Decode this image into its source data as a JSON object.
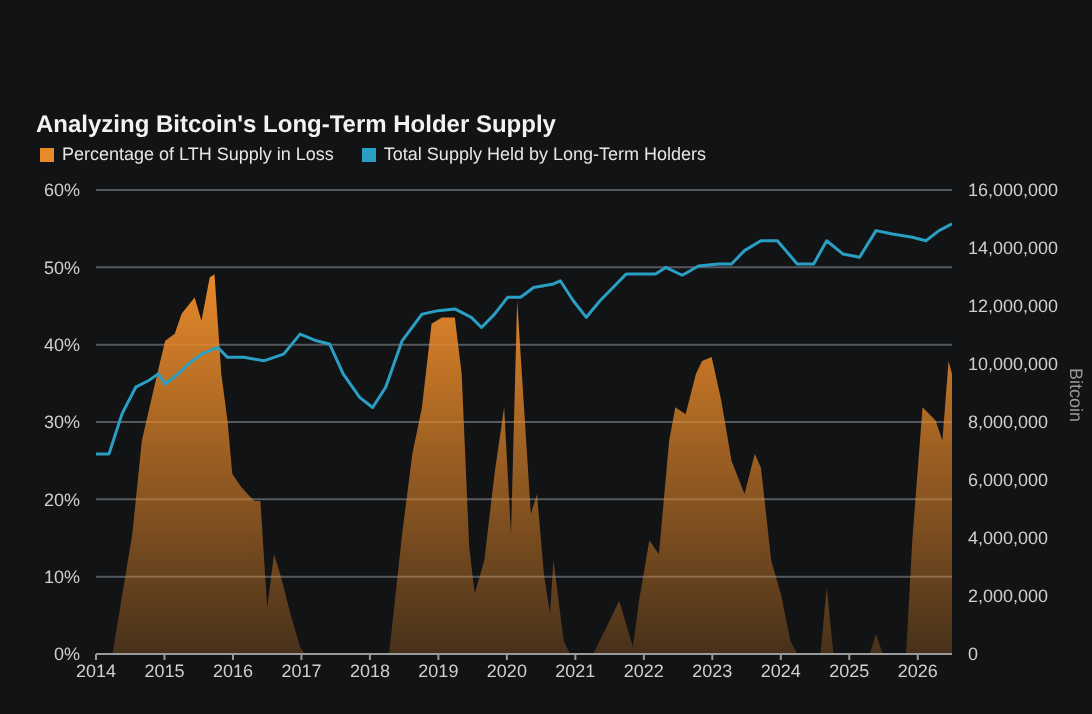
{
  "chart_data": {
    "type": "area",
    "title": "Analyzing Bitcoin's Long-Term Holder Supply",
    "y2label": "Bitcoin",
    "legend": "top left",
    "grid": "y",
    "xlim": [
      2014,
      2026.5
    ],
    "xticks": [
      2014,
      2015,
      2016,
      2017,
      2018,
      2019,
      2020,
      2021,
      2022,
      2023,
      2024,
      2025,
      2026
    ],
    "ylim": [
      0,
      60
    ],
    "yticks": [
      {
        "value": 0,
        "label": "0%"
      },
      {
        "value": 10,
        "label": "10%"
      },
      {
        "value": 20,
        "label": "20%"
      },
      {
        "value": 30,
        "label": "30%"
      },
      {
        "value": 40,
        "label": "40%"
      },
      {
        "value": 50,
        "label": "50%"
      },
      {
        "value": 60,
        "label": "60%"
      }
    ],
    "y2lim": [
      0,
      16000000
    ],
    "y2ticks": [
      {
        "value": 0,
        "label": "0"
      },
      {
        "value": 2000000,
        "label": "2,000,000"
      },
      {
        "value": 4000000,
        "label": "4,000,000"
      },
      {
        "value": 6000000,
        "label": "6,000,000"
      },
      {
        "value": 8000000,
        "label": "8,000,000"
      },
      {
        "value": 10000000,
        "label": "10,000,000"
      },
      {
        "value": 12000000,
        "label": "12,000,000"
      },
      {
        "value": 14000000,
        "label": "14,000,000"
      },
      {
        "value": 16000000,
        "label": "16,000,000"
      }
    ],
    "series": [
      {
        "name": "Percentage of LTH Supply in Loss",
        "color": "#e8892a",
        "x": [
          2014.24,
          2014.53,
          2014.67,
          2014.87,
          2015.01,
          2015.15,
          2015.25,
          2015.44,
          2015.54,
          2015.66,
          2015.73,
          2015.83,
          2015.92,
          2015.99,
          2016.12,
          2016.31,
          2016.4,
          2016.5,
          2016.6,
          2016.69,
          2016.84,
          2016.98,
          2017.05,
          2018.28,
          2018.47,
          2018.62,
          2018.76,
          2018.9,
          2019.05,
          2019.24,
          2019.34,
          2019.45,
          2019.53,
          2019.67,
          2019.82,
          2019.96,
          2020.06,
          2020.15,
          2020.25,
          2020.35,
          2020.44,
          2020.54,
          2020.63,
          2020.68,
          2020.83,
          2020.92,
          2021.26,
          2021.45,
          2021.64,
          2021.84,
          2021.93,
          2022.08,
          2022.22,
          2022.37,
          2022.46,
          2022.61,
          2022.76,
          2022.85,
          2022.99,
          2023.13,
          2023.28,
          2023.47,
          2023.62,
          2023.71,
          2023.86,
          2024.0,
          2024.14,
          2024.24,
          2024.58,
          2024.67,
          2024.77,
          2025.3,
          2025.39,
          2025.49,
          2025.83,
          2025.92,
          2026.07,
          2026.26,
          2026.36,
          2026.45,
          2026.5
        ],
        "values": [
          0,
          15.5,
          27.6,
          35.3,
          40.5,
          41.4,
          44,
          46.1,
          43.1,
          48.7,
          49.1,
          36.2,
          30.2,
          23.3,
          21.6,
          19.8,
          19.8,
          6,
          12.9,
          10.3,
          5.2,
          0.9,
          0,
          0,
          15.5,
          25.9,
          31.9,
          42.7,
          43.5,
          43.5,
          36.2,
          13.8,
          7.8,
          12.1,
          23.3,
          31.9,
          15.5,
          45.7,
          31.9,
          18.1,
          20.7,
          10.3,
          5.2,
          12.1,
          1.7,
          0,
          0,
          3.4,
          6.9,
          0.9,
          6.9,
          14.7,
          12.9,
          27.6,
          31.9,
          31,
          36.2,
          37.9,
          38.4,
          32.8,
          25,
          20.7,
          25.9,
          24.1,
          12.1,
          7.8,
          1.7,
          0,
          0,
          8.6,
          0,
          0,
          2.6,
          0,
          0,
          14.7,
          31.9,
          30.2,
          27.6,
          37.9,
          36.2
        ]
      },
      {
        "name": "Total Supply Held by Long-Term Holders",
        "type": "line",
        "axis": "y2",
        "color": "#2a9fc4",
        "x": [
          2014,
          2014.19,
          2014.38,
          2014.58,
          2014.77,
          2014.91,
          2015.01,
          2015.2,
          2015.35,
          2015.54,
          2015.78,
          2015.92,
          2016.16,
          2016.45,
          2016.74,
          2016.98,
          2017.22,
          2017.41,
          2017.61,
          2017.85,
          2018.04,
          2018.23,
          2018.47,
          2018.76,
          2019.0,
          2019.24,
          2019.48,
          2019.63,
          2019.82,
          2020.01,
          2020.2,
          2020.39,
          2020.68,
          2020.78,
          2020.97,
          2021.16,
          2021.36,
          2021.55,
          2021.74,
          2021.93,
          2022.17,
          2022.32,
          2022.56,
          2022.8,
          2023.09,
          2023.28,
          2023.47,
          2023.71,
          2023.95,
          2024.24,
          2024.48,
          2024.67,
          2024.91,
          2025.15,
          2025.39,
          2025.63,
          2025.92,
          2026.12,
          2026.31,
          2026.5
        ],
        "values": [
          6900000,
          6900000,
          8280000,
          9200000,
          9430000,
          9660000,
          9310000,
          9660000,
          10000000,
          10340000,
          10570000,
          10230000,
          10230000,
          10110000,
          10340000,
          11030000,
          10800000,
          10690000,
          9660000,
          8850000,
          8500000,
          9200000,
          10800000,
          11720000,
          11840000,
          11900000,
          11610000,
          11260000,
          11720000,
          12300000,
          12300000,
          12640000,
          12760000,
          12870000,
          12180000,
          11610000,
          12180000,
          12640000,
          13100000,
          13100000,
          13100000,
          13330000,
          13060000,
          13380000,
          13450000,
          13450000,
          13910000,
          14250000,
          14250000,
          13450000,
          13450000,
          14250000,
          13790000,
          13680000,
          14600000,
          14480000,
          14370000,
          14250000,
          14600000,
          14830000
        ]
      }
    ]
  }
}
